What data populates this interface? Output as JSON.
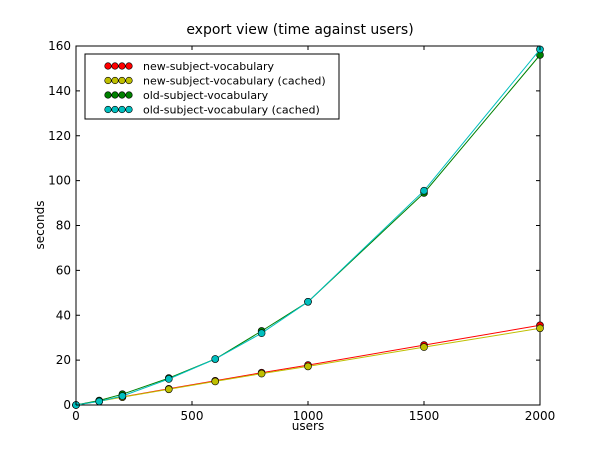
{
  "chart_data": {
    "type": "line",
    "title": "export view (time against users)",
    "xlabel": "users",
    "ylabel": "seconds",
    "xlim": [
      0,
      2000
    ],
    "ylim": [
      0,
      160
    ],
    "xticks": [
      0,
      500,
      1000,
      1500,
      2000
    ],
    "yticks": [
      0,
      20,
      40,
      60,
      80,
      100,
      120,
      140,
      160
    ],
    "grid": false,
    "legend_position": "top-left",
    "series": [
      {
        "name": "new-subject-vocabulary",
        "color": "#ff0000",
        "x": [
          0,
          100,
          200,
          400,
          600,
          800,
          1000,
          1500,
          2000
        ],
        "y": [
          0,
          1.8,
          3.6,
          7.2,
          10.8,
          14.4,
          17.8,
          26.7,
          35.5
        ]
      },
      {
        "name": "new-subject-vocabulary (cached)",
        "color": "#bfbf00",
        "x": [
          0,
          100,
          200,
          400,
          600,
          800,
          1000,
          1500,
          2000
        ],
        "y": [
          0,
          1.7,
          3.5,
          7.0,
          10.5,
          14.0,
          17.2,
          25.8,
          34.2
        ]
      },
      {
        "name": "old-subject-vocabulary",
        "color": "#008000",
        "x": [
          0,
          100,
          200,
          400,
          600,
          800,
          1000,
          1500,
          2000
        ],
        "y": [
          0,
          2.0,
          4.8,
          12.0,
          20.5,
          33.0,
          46.0,
          94.5,
          156.0
        ]
      },
      {
        "name": "old-subject-vocabulary (cached)",
        "color": "#00bfbf",
        "x": [
          0,
          100,
          200,
          400,
          600,
          800,
          1000,
          1500,
          2000
        ],
        "y": [
          0,
          1.6,
          4.0,
          11.6,
          20.5,
          32.0,
          46.0,
          95.5,
          158.5
        ]
      }
    ]
  }
}
